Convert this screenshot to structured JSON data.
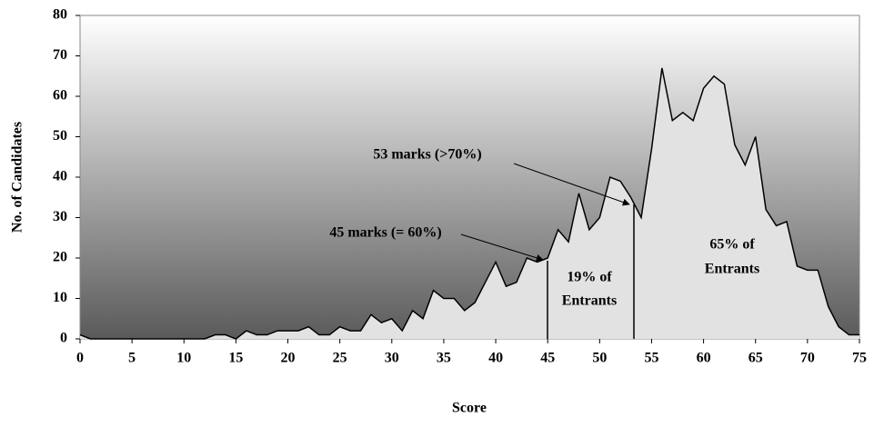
{
  "chart_data": {
    "type": "area",
    "x_label": "Score",
    "y_label": "No. of Candidates",
    "x": [
      0,
      1,
      2,
      3,
      4,
      5,
      6,
      7,
      8,
      9,
      10,
      11,
      12,
      13,
      14,
      15,
      16,
      17,
      18,
      19,
      20,
      21,
      22,
      23,
      24,
      25,
      26,
      27,
      28,
      29,
      30,
      31,
      32,
      33,
      34,
      35,
      36,
      37,
      38,
      39,
      40,
      41,
      42,
      43,
      44,
      45,
      46,
      47,
      48,
      49,
      50,
      51,
      52,
      53,
      54,
      55,
      56,
      57,
      58,
      59,
      60,
      61,
      62,
      63,
      64,
      65,
      66,
      67,
      68,
      69,
      70,
      71,
      72,
      73,
      74,
      75
    ],
    "values": [
      1,
      0,
      0,
      0,
      0,
      0,
      0,
      0,
      0,
      0,
      0,
      0,
      0,
      1,
      1,
      0,
      2,
      1,
      1,
      2,
      2,
      2,
      3,
      1,
      1,
      3,
      2,
      2,
      6,
      4,
      5,
      2,
      7,
      5,
      12,
      10,
      10,
      7,
      9,
      14,
      19,
      13,
      14,
      20,
      19,
      20,
      27,
      24,
      36,
      27,
      30,
      40,
      39,
      35,
      30,
      47,
      67,
      54,
      56,
      54,
      62,
      65,
      63,
      48,
      43,
      50,
      32,
      28,
      29,
      18,
      17,
      17,
      8,
      3,
      1,
      1
    ],
    "color": "#e2e2e2",
    "line_color": "#000000",
    "xlim": [
      0,
      75
    ],
    "xticks": [
      0,
      5,
      10,
      15,
      20,
      25,
      30,
      35,
      40,
      45,
      50,
      55,
      60,
      65,
      70,
      75
    ],
    "ylim": [
      0,
      80
    ],
    "yticks": [
      0,
      10,
      20,
      30,
      40,
      50,
      60,
      70,
      80
    ],
    "annotations": [
      "53 marks (>70%)",
      "45 marks (= 60%)",
      [
        "19% of",
        "Entrants"
      ],
      [
        "65% of",
        "Entrants"
      ]
    ]
  }
}
